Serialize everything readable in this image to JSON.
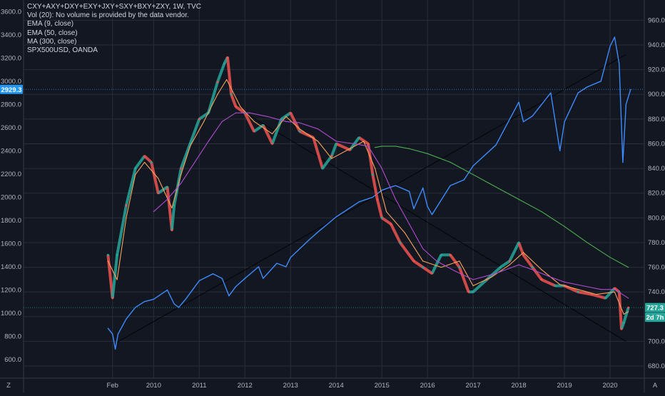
{
  "legend": {
    "main": "CXY+AXY+DXY+EXY+JXY+SXY+BXY+ZXY, 1W, TVC",
    "vol": "Vol (20): No volume is provided by the data vendor.",
    "ema9": "EMA (9, close)",
    "ema50": "EMA (50, close)",
    "ma300": "MA (300, close)",
    "overlay": "SPX500USD, OANDA"
  },
  "colors": {
    "background": "#131722",
    "grid": "#2a2e39",
    "spx_line": "#3d8bfd",
    "ema9": "#f7a35c",
    "ema50": "#b04cd0",
    "ma300": "#4caf50",
    "candle_up": "#26a69a",
    "candle_down": "#ef5350",
    "left_badge": "#2196f3",
    "right_badge": "#26a69a"
  },
  "corner": {
    "left": "Z",
    "right": "A"
  },
  "badges": {
    "left_price": "2929.3",
    "right_price": "727.3",
    "right_timer": "2d 7h"
  },
  "chart_data": {
    "type": "line",
    "x_ticks": [
      "Feb",
      "2010",
      "2011",
      "2012",
      "2013",
      "2014",
      "2015",
      "2016",
      "2017",
      "2018",
      "2019",
      "2020"
    ],
    "x_tick_positions": [
      2009.1,
      2010,
      2011,
      2012,
      2013,
      2014,
      2015,
      2016,
      2017,
      2018,
      2019,
      2020
    ],
    "xlim": [
      2007.15,
      2020.75
    ],
    "left_axis": {
      "ticks": [
        600,
        800,
        1000,
        1200,
        1400,
        1600,
        1800,
        2000,
        2200,
        2400,
        2600,
        2800,
        3000,
        3200,
        3400,
        3600
      ],
      "labels": [
        "600.0",
        "800.0",
        "1000.0",
        "1200.0",
        "1400.0",
        "1600.0",
        "1800.0",
        "2000.0",
        "2200.0",
        "2400.0",
        "2600.0",
        "2800.0",
        "3000.0",
        "3200.0",
        "3400.0",
        "3600.0"
      ],
      "ylim": [
        440,
        3700
      ]
    },
    "right_axis": {
      "ticks": [
        680,
        700,
        720,
        740,
        760,
        780,
        800,
        820,
        840,
        860,
        880,
        900,
        920,
        940,
        960
      ],
      "labels": [
        "680.0",
        "700.0",
        "720.0",
        "740.0",
        "760.0",
        "780.0",
        "800.0",
        "820.0",
        "840.0",
        "860.0",
        "880.0",
        "900.0",
        "920.0",
        "940.0",
        "960.0"
      ],
      "ylim": [
        670.2,
        976.4
      ]
    },
    "series": [
      {
        "name": "SPX500USD, OANDA",
        "axis": "left",
        "x": [
          2009.0,
          2009.1,
          2009.16,
          2009.22,
          2009.4,
          2009.6,
          2009.8,
          2010.0,
          2010.3,
          2010.45,
          2010.55,
          2010.7,
          2011.0,
          2011.3,
          2011.5,
          2011.65,
          2011.8,
          2012.0,
          2012.3,
          2012.4,
          2012.7,
          2012.9,
          2013.0,
          2013.4,
          2013.6,
          2014.0,
          2014.5,
          2014.8,
          2015.0,
          2015.3,
          2015.6,
          2015.7,
          2015.9,
          2016.0,
          2016.1,
          2016.5,
          2016.8,
          2017.0,
          2017.5,
          2018.0,
          2018.1,
          2018.3,
          2018.7,
          2018.9,
          2019.0,
          2019.3,
          2019.5,
          2019.8,
          2020.0,
          2020.1,
          2020.2,
          2020.28,
          2020.35,
          2020.45
        ],
        "values": [
          870,
          820,
          690,
          820,
          950,
          1050,
          1100,
          1120,
          1200,
          1080,
          1050,
          1120,
          1280,
          1340,
          1300,
          1150,
          1230,
          1300,
          1400,
          1300,
          1430,
          1400,
          1480,
          1630,
          1700,
          1830,
          1960,
          2000,
          2060,
          2100,
          2050,
          1900,
          2080,
          1920,
          1850,
          2100,
          2150,
          2270,
          2450,
          2820,
          2650,
          2700,
          2900,
          2400,
          2650,
          2900,
          2950,
          3000,
          3300,
          3380,
          3150,
          2300,
          2800,
          2929.3
        ],
        "color": "#3d8bfd"
      },
      {
        "name": "CXY+AXY+DXY+EXY+JXY+SXY+BXY+ZXY",
        "axis": "right",
        "style": "candles",
        "x": [
          2009.0,
          2009.1,
          2009.2,
          2009.4,
          2009.6,
          2009.8,
          2009.95,
          2010.1,
          2010.3,
          2010.4,
          2010.45,
          2010.6,
          2010.8,
          2011.0,
          2011.2,
          2011.4,
          2011.55,
          2011.62,
          2011.7,
          2011.8,
          2012.0,
          2012.2,
          2012.4,
          2012.6,
          2012.8,
          2013.0,
          2013.2,
          2013.5,
          2013.7,
          2013.9,
          2014.0,
          2014.3,
          2014.5,
          2014.7,
          2014.8,
          2014.9,
          2015.0,
          2015.2,
          2015.4,
          2015.7,
          2015.9,
          2016.1,
          2016.3,
          2016.5,
          2016.7,
          2016.9,
          2017.0,
          2017.3,
          2017.6,
          2017.8,
          2018.0,
          2018.1,
          2018.3,
          2018.5,
          2018.8,
          2019.0,
          2019.3,
          2019.6,
          2019.9,
          2020.1,
          2020.2,
          2020.25,
          2020.3,
          2020.4
        ],
        "values": [
          770,
          735,
          770,
          810,
          840,
          850,
          845,
          820,
          825,
          790,
          810,
          840,
          860,
          880,
          885,
          910,
          925,
          930,
          900,
          890,
          885,
          870,
          875,
          860,
          880,
          885,
          870,
          865,
          840,
          850,
          860,
          855,
          865,
          860,
          835,
          815,
          800,
          795,
          780,
          765,
          760,
          755,
          770,
          770,
          760,
          740,
          740,
          750,
          760,
          765,
          780,
          770,
          760,
          750,
          745,
          745,
          740,
          738,
          735,
          743,
          740,
          710,
          715,
          727.3
        ],
        "colors_up_down": [
          "#26a69a",
          "#ef5350"
        ]
      },
      {
        "name": "EMA (9, close)",
        "axis": "right",
        "x": [
          2009.0,
          2009.2,
          2009.4,
          2009.6,
          2009.8,
          2010.1,
          2010.4,
          2010.6,
          2010.8,
          2011.1,
          2011.4,
          2011.6,
          2011.9,
          2012.2,
          2012.6,
          2012.9,
          2013.2,
          2013.6,
          2013.9,
          2014.3,
          2014.6,
          2014.85,
          2015.1,
          2015.5,
          2015.9,
          2016.3,
          2016.7,
          2017.0,
          2017.4,
          2017.8,
          2018.1,
          2018.5,
          2018.9,
          2019.3,
          2019.7,
          2020.1,
          2020.3,
          2020.4
        ],
        "values": [
          765,
          750,
          800,
          835,
          845,
          832,
          808,
          835,
          858,
          878,
          900,
          912,
          890,
          878,
          868,
          882,
          872,
          862,
          848,
          856,
          862,
          840,
          805,
          788,
          765,
          760,
          765,
          745,
          752,
          762,
          772,
          758,
          746,
          742,
          738,
          740,
          722,
          724
        ],
        "color": "#f7a35c"
      },
      {
        "name": "EMA (50, close)",
        "axis": "right",
        "x": [
          2010.0,
          2010.3,
          2010.6,
          2010.9,
          2011.2,
          2011.5,
          2011.8,
          2012.1,
          2012.5,
          2012.9,
          2013.2,
          2013.6,
          2014.0,
          2014.4,
          2014.7,
          2015.0,
          2015.3,
          2015.6,
          2015.9,
          2016.2,
          2016.6,
          2017.0,
          2017.5,
          2018.0,
          2018.3,
          2018.7,
          2019.0,
          2019.4,
          2019.8,
          2020.1,
          2020.4
        ],
        "values": [
          805,
          815,
          828,
          845,
          862,
          878,
          885,
          885,
          882,
          878,
          877,
          872,
          862,
          860,
          858,
          840,
          815,
          795,
          775,
          765,
          757,
          750,
          755,
          762,
          758,
          752,
          748,
          745,
          742,
          742,
          735
        ],
        "color": "#b04cd0"
      },
      {
        "name": "MA (300, close)",
        "axis": "right",
        "x": [
          2014.85,
          2015.0,
          2015.3,
          2015.6,
          2016.0,
          2016.5,
          2017.0,
          2017.5,
          2018.0,
          2018.5,
          2019.0,
          2019.5,
          2020.0,
          2020.4
        ],
        "values": [
          857,
          858,
          858,
          856,
          852,
          845,
          835,
          825,
          815,
          805,
          793,
          780,
          768,
          760
        ],
        "color": "#4caf50"
      }
    ],
    "annotations": [
      {
        "type": "trendline",
        "axis": "left",
        "x": [
          2009.2,
          2020.35
        ],
        "values": [
          750,
          3230
        ]
      },
      {
        "type": "trendline",
        "axis": "right",
        "x": [
          2012.0,
          2020.35
        ],
        "values": [
          885,
          700
        ]
      }
    ],
    "price_lines": [
      {
        "axis": "right",
        "value": 727.3
      },
      {
        "axis": "left",
        "value": 2929.3
      }
    ]
  }
}
